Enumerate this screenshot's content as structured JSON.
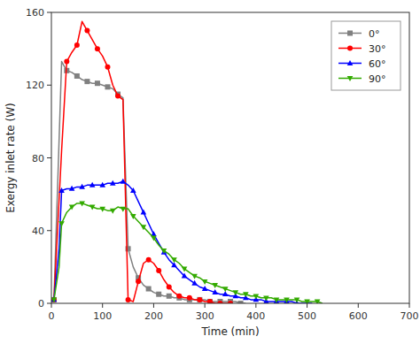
{
  "chart_data": {
    "type": "line",
    "xlabel": "Time (min)",
    "ylabel": "Exergy inlet rate (W)",
    "xlim": [
      0,
      700
    ],
    "ylim": [
      0,
      160
    ],
    "xticks": [
      0,
      100,
      200,
      300,
      400,
      500,
      600,
      700
    ],
    "yticks": [
      0,
      40,
      80,
      120,
      160
    ],
    "grid": false,
    "legend": "upper right",
    "series": [
      {
        "name": "0°",
        "color": "#808080",
        "marker": "square",
        "x": [
          5,
          20,
          30,
          40,
          50,
          60,
          70,
          80,
          90,
          100,
          110,
          120,
          130,
          140,
          150,
          160,
          170,
          180,
          190,
          200,
          210,
          220,
          230,
          240,
          250,
          260,
          270,
          280,
          290,
          300,
          310,
          320,
          330,
          340,
          350,
          360,
          370,
          380
        ],
        "values": [
          2,
          133,
          128,
          127,
          125,
          123,
          122,
          121,
          121,
          120,
          119,
          118,
          115,
          113,
          30,
          20,
          14,
          10,
          8,
          6,
          5,
          4,
          4,
          3,
          3,
          2,
          2,
          2,
          2,
          2,
          1,
          1,
          1,
          1,
          1,
          1,
          0,
          0
        ]
      },
      {
        "name": "30°",
        "color": "#ff0000",
        "marker": "circle",
        "x": [
          5,
          20,
          30,
          40,
          50,
          60,
          70,
          80,
          90,
          100,
          110,
          120,
          130,
          140,
          150,
          160,
          170,
          180,
          190,
          200,
          210,
          220,
          230,
          240,
          250,
          260,
          270,
          280,
          290,
          300,
          310,
          320,
          330,
          340,
          350
        ],
        "values": [
          2,
          84,
          133,
          138,
          142,
          155,
          150,
          145,
          140,
          136,
          130,
          120,
          114,
          112,
          2,
          1,
          12,
          22,
          24,
          22,
          18,
          13,
          9,
          6,
          4,
          3,
          3,
          2,
          2,
          1,
          1,
          0,
          0,
          0,
          0
        ]
      },
      {
        "name": "60°",
        "color": "#0000ff",
        "marker": "triangle-up",
        "x": [
          5,
          15,
          20,
          30,
          40,
          50,
          60,
          70,
          80,
          90,
          100,
          110,
          120,
          130,
          140,
          150,
          160,
          170,
          180,
          190,
          200,
          210,
          220,
          230,
          240,
          250,
          260,
          270,
          280,
          290,
          300,
          310,
          320,
          330,
          340,
          350,
          360,
          370,
          380,
          390,
          400,
          410,
          420,
          430,
          440,
          450,
          460,
          470,
          480,
          490,
          500,
          510
        ],
        "values": [
          2,
          30,
          62,
          63,
          63,
          64,
          64,
          65,
          65,
          65,
          65,
          66,
          66,
          66,
          67,
          65,
          62,
          56,
          50,
          44,
          38,
          33,
          28,
          24,
          21,
          18,
          15,
          13,
          11,
          9,
          8,
          7,
          6,
          5,
          5,
          4,
          4,
          3,
          3,
          2,
          2,
          2,
          1,
          1,
          1,
          1,
          1,
          1,
          0,
          0,
          0,
          0
        ]
      },
      {
        "name": "90°",
        "color": "#33aa00",
        "marker": "triangle-down",
        "x": [
          5,
          15,
          20,
          30,
          40,
          50,
          60,
          70,
          80,
          90,
          100,
          110,
          120,
          130,
          140,
          150,
          160,
          170,
          180,
          190,
          200,
          210,
          220,
          230,
          240,
          250,
          260,
          270,
          280,
          290,
          300,
          310,
          320,
          330,
          340,
          350,
          360,
          370,
          380,
          390,
          400,
          410,
          420,
          430,
          440,
          450,
          460,
          470,
          480,
          490,
          500,
          510,
          520,
          530
        ],
        "values": [
          2,
          20,
          44,
          50,
          53,
          55,
          55,
          54,
          53,
          52,
          52,
          51,
          51,
          53,
          52,
          52,
          48,
          45,
          42,
          39,
          36,
          32,
          29,
          27,
          24,
          22,
          19,
          17,
          15,
          14,
          12,
          11,
          10,
          9,
          8,
          7,
          6,
          5,
          5,
          4,
          4,
          3,
          3,
          3,
          2,
          2,
          2,
          2,
          2,
          1,
          1,
          1,
          1,
          0
        ]
      }
    ]
  }
}
